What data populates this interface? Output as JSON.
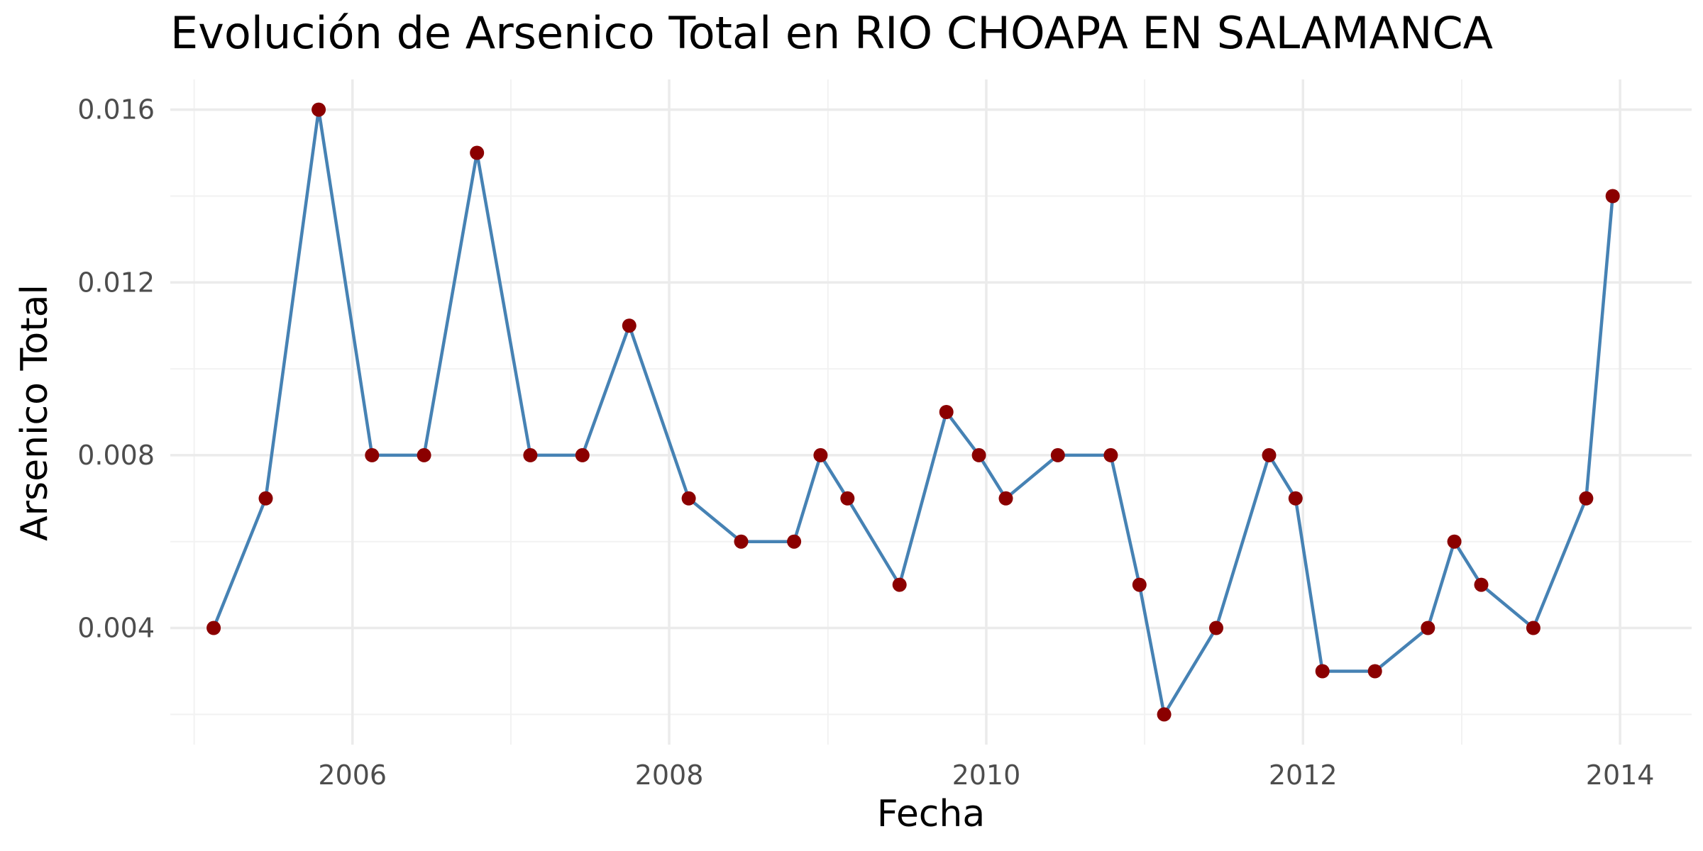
{
  "chart_data": {
    "type": "line",
    "title": "Evolución de Arsenico Total en RIO CHOAPA EN SALAMANCA",
    "xlabel": "Fecha",
    "ylabel": "Arsenico Total",
    "x_ticks": [
      "2006",
      "2008",
      "2010",
      "2012",
      "2014"
    ],
    "y_ticks": [
      "0.004",
      "0.008",
      "0.012",
      "0.016"
    ],
    "xlim": [
      "2004-11-07",
      "2014-06-15"
    ],
    "ylim": [
      0.0013,
      0.0167
    ],
    "grid": true,
    "legend": "none",
    "line_color": "#4682b4",
    "point_color": "#8b0000",
    "series": [
      {
        "x": [
          "2005-02-15",
          "2005-06-15",
          "2005-10-15",
          "2006-02-15",
          "2006-06-15",
          "2006-10-15",
          "2007-02-15",
          "2007-06-15",
          "2007-10-01",
          "2008-02-15",
          "2008-06-15",
          "2008-10-15",
          "2008-12-15",
          "2009-02-15",
          "2009-06-15",
          "2009-10-01",
          "2009-12-15",
          "2010-02-15",
          "2010-06-15",
          "2010-10-15",
          "2010-12-20",
          "2011-02-15",
          "2011-06-15",
          "2011-10-15",
          "2011-12-15",
          "2012-02-15",
          "2012-06-15",
          "2012-10-15",
          "2012-12-15",
          "2013-02-15",
          "2013-06-15",
          "2013-10-15",
          "2013-12-15"
        ],
        "values": [
          0.004,
          0.007,
          0.016,
          0.008,
          0.008,
          0.015,
          0.008,
          0.008,
          0.011,
          0.007,
          0.006,
          0.006,
          0.008,
          0.007,
          0.005,
          0.009,
          0.008,
          0.007,
          0.008,
          0.008,
          0.005,
          0.002,
          0.004,
          0.008,
          0.007,
          0.003,
          0.003,
          0.004,
          0.006,
          0.005,
          0.004,
          0.007,
          0.014
        ]
      }
    ]
  }
}
